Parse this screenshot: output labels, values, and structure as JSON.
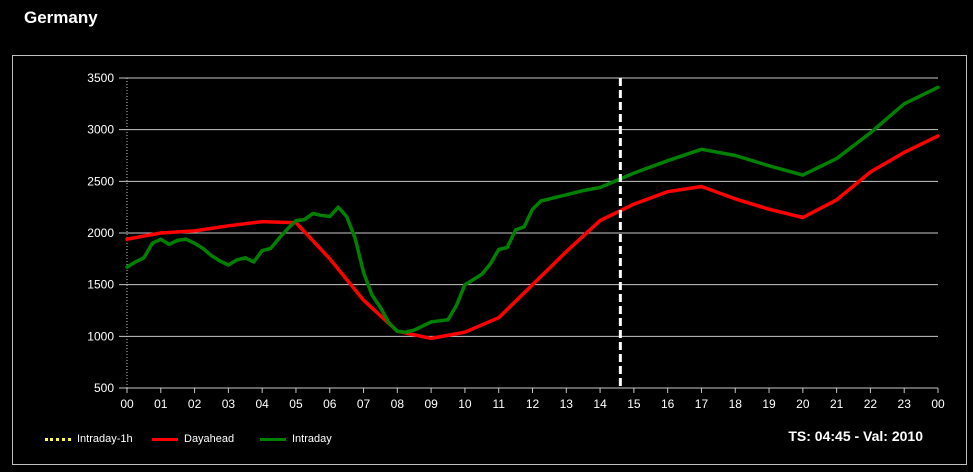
{
  "title": "Germany",
  "status_text": "TS: 04:45 - Val: 2010",
  "legend": [
    {
      "label": "Intraday-1h",
      "color": "#ffff44",
      "style": "dotted"
    },
    {
      "label": "Dayahead",
      "color": "#ff0000",
      "style": "solid"
    },
    {
      "label": "Intraday",
      "color": "#008000",
      "style": "solid"
    }
  ],
  "chart_data": {
    "type": "line",
    "xlabel": "",
    "ylabel": "",
    "ylim": [
      500,
      3500
    ],
    "yticks": [
      500,
      1000,
      1500,
      2000,
      2500,
      3000,
      3500
    ],
    "xlim": [
      0,
      24
    ],
    "xtick_labels": [
      "00",
      "01",
      "02",
      "03",
      "04",
      "05",
      "06",
      "07",
      "08",
      "09",
      "10",
      "11",
      "12",
      "13",
      "14",
      "15",
      "16",
      "17",
      "18",
      "19",
      "20",
      "21",
      "22",
      "23",
      "00"
    ],
    "grid": "horizontal",
    "current_time_marker": 14.6,
    "series": [
      {
        "name": "Dayahead",
        "color": "#ff0000",
        "x": [
          0,
          1,
          2,
          3,
          4,
          5,
          6,
          7,
          8,
          9,
          10,
          11,
          12,
          13,
          14,
          15,
          16,
          17,
          18,
          19,
          20,
          21,
          22,
          23,
          24
        ],
        "y": [
          1940,
          2000,
          2020,
          2070,
          2110,
          2100,
          1750,
          1350,
          1050,
          980,
          1040,
          1180,
          1500,
          1820,
          2120,
          2280,
          2400,
          2450,
          2330,
          2230,
          2150,
          2320,
          2590,
          2780,
          2940
        ]
      },
      {
        "name": "Intraday",
        "color": "#008000",
        "x": [
          0,
          0.25,
          0.5,
          0.75,
          1,
          1.25,
          1.5,
          1.75,
          2,
          2.25,
          2.5,
          2.75,
          3,
          3.25,
          3.5,
          3.75,
          4,
          4.25,
          4.5,
          4.75,
          5,
          5.25,
          5.5,
          5.75,
          6,
          6.25,
          6.5,
          6.75,
          7,
          7.25,
          7.5,
          7.75,
          8,
          8.25,
          8.5,
          8.75,
          9,
          9.25,
          9.5,
          9.75,
          10,
          10.25,
          10.5,
          10.75,
          11,
          11.25,
          11.5,
          11.75,
          12,
          12.25,
          12.5,
          12.75,
          13,
          13.5,
          14,
          14.5,
          15,
          16,
          17,
          18,
          19,
          20,
          21,
          22,
          23,
          24
        ],
        "y": [
          1670,
          1720,
          1760,
          1900,
          1940,
          1890,
          1930,
          1940,
          1900,
          1850,
          1780,
          1730,
          1690,
          1740,
          1760,
          1720,
          1830,
          1850,
          1950,
          2040,
          2120,
          2130,
          2190,
          2170,
          2160,
          2250,
          2160,
          1950,
          1620,
          1400,
          1280,
          1130,
          1050,
          1040,
          1060,
          1100,
          1140,
          1150,
          1160,
          1300,
          1500,
          1550,
          1600,
          1700,
          1840,
          1860,
          2030,
          2060,
          2230,
          2310,
          2330,
          2350,
          2370,
          2410,
          2440,
          2510,
          2580,
          2700,
          2810,
          2750,
          2650,
          2560,
          2720,
          2970,
          3250,
          3410
        ]
      }
    ]
  }
}
